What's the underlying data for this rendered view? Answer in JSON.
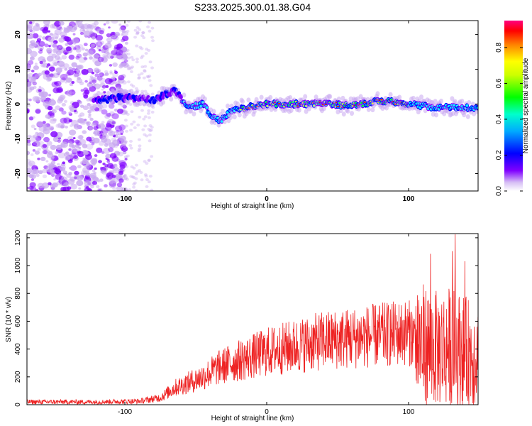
{
  "figure": {
    "title": "S233.2025.300.01.38.G04"
  },
  "chart_data": [
    {
      "type": "heatmap",
      "title": "S233.2025.300.01.38.G04",
      "xlabel": "Height of straight line (km)",
      "ylabel": "Frequency (Hz)",
      "xlim": [
        -169,
        149
      ],
      "ylim": [
        -25,
        24
      ],
      "x_ticks": [
        -100,
        0,
        100
      ],
      "x_tick_labels": [
        "-100",
        "0",
        "100"
      ],
      "y_ticks": [
        -20,
        -10,
        0,
        10,
        20
      ],
      "y_tick_labels": [
        "-20",
        "-10",
        "0",
        "10",
        "20"
      ],
      "colorbar": {
        "label": "Normalized spectral amplitude",
        "range": [
          0,
          0.95
        ],
        "ticks": [
          0.0,
          0.2,
          0.4,
          0.6,
          0.8
        ],
        "tick_labels": [
          "0.0",
          "0.2",
          "0.4",
          "0.6",
          "0.8"
        ],
        "colormap": [
          "#ffffff",
          "#c8a8f0",
          "#8000ff",
          "#0000ff",
          "#00ffff",
          "#00ff00",
          "#ffff00",
          "#ff8000",
          "#ff0000",
          "#ff0080"
        ]
      },
      "ridge": {
        "description_points_x": [
          -120,
          -100,
          -80,
          -65,
          -55,
          -45,
          -37,
          -33,
          -25,
          -15,
          0,
          20,
          40,
          60,
          80,
          100,
          120,
          149
        ],
        "description_points_y": [
          1,
          2,
          1,
          4,
          -1,
          0,
          -4,
          -5,
          -2,
          -1,
          0,
          0,
          0,
          -0.5,
          1,
          0,
          -1,
          -1
        ]
      }
    },
    {
      "type": "line",
      "title": "",
      "xlabel": "Height of straight line (km)",
      "ylabel": "SNR (10 * v/v)",
      "xlim": [
        -169,
        149
      ],
      "ylim": [
        0,
        1230
      ],
      "x_ticks": [
        -100,
        0,
        100
      ],
      "x_tick_labels": [
        "-100",
        "0",
        "100"
      ],
      "y_ticks": [
        0,
        200,
        400,
        600,
        800,
        1000,
        1200
      ],
      "y_tick_labels": [
        "0",
        "200",
        "400",
        "600",
        "800",
        "1000",
        "1200"
      ],
      "series": [
        {
          "name": "SNR",
          "color": "#ee2222",
          "envelope_x": [
            -169,
            -120,
            -90,
            -75,
            -65,
            -55,
            -45,
            -35,
            -25,
            -15,
            0,
            20,
            40,
            60,
            80,
            100,
            110,
            120,
            130,
            140,
            149
          ],
          "envelope_mean": [
            20,
            20,
            25,
            50,
            120,
            160,
            200,
            260,
            300,
            330,
            380,
            420,
            460,
            480,
            500,
            520,
            430,
            400,
            420,
            380,
            350
          ]
        }
      ]
    }
  ]
}
